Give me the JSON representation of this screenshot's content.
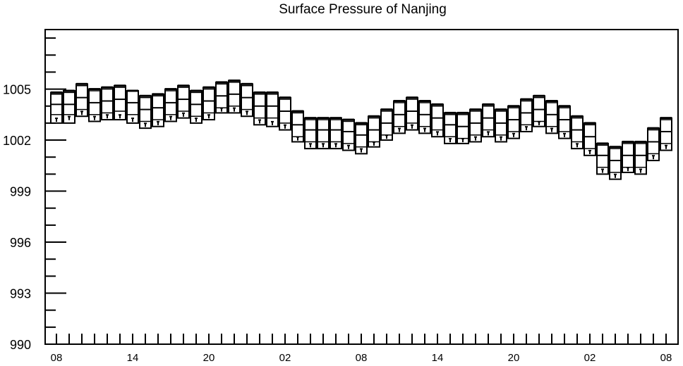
{
  "chart_data": {
    "type": "box",
    "title": "Surface Pressure of Nanjing",
    "xlabel": "",
    "ylabel": "",
    "ylim": [
      990,
      1008.5
    ],
    "xlim": [
      0,
      48
    ],
    "grid": false,
    "legend": "none",
    "y_ticks": [
      990,
      993,
      996,
      999,
      1002,
      1005
    ],
    "x_tick_labels": [
      {
        "x": 0,
        "label": "08"
      },
      {
        "x": 6,
        "label": "14"
      },
      {
        "x": 12,
        "label": "20"
      },
      {
        "x": 18,
        "label": "02"
      },
      {
        "x": 24,
        "label": "08"
      },
      {
        "x": 30,
        "label": "14"
      },
      {
        "x": 36,
        "label": "20"
      },
      {
        "x": 42,
        "label": "02"
      },
      {
        "x": 48,
        "label": "08"
      }
    ],
    "boxes": [
      {
        "x": 0,
        "max": 1004.8,
        "q3": 1004.7,
        "median": 1004.1,
        "q1": 1003.5,
        "min": 1003.0,
        "whisker_low": 1003.2
      },
      {
        "x": 1,
        "max": 1004.9,
        "q3": 1004.8,
        "median": 1004.1,
        "q1": 1003.5,
        "min": 1003.0,
        "whisker_low": 1003.3
      },
      {
        "x": 2,
        "max": 1005.3,
        "q3": 1005.2,
        "median": 1004.5,
        "q1": 1003.8,
        "min": 1003.4,
        "whisker_low": 1003.6
      },
      {
        "x": 3,
        "max": 1005.0,
        "q3": 1004.9,
        "median": 1004.2,
        "q1": 1003.5,
        "min": 1003.1,
        "whisker_low": 1003.3
      },
      {
        "x": 4,
        "max": 1005.1,
        "q3": 1005.0,
        "median": 1004.3,
        "q1": 1003.6,
        "min": 1003.2,
        "whisker_low": 1003.4
      },
      {
        "x": 5,
        "max": 1005.2,
        "q3": 1005.1,
        "median": 1004.4,
        "q1": 1003.7,
        "min": 1003.2,
        "whisker_low": 1003.4
      },
      {
        "x": 6,
        "max": 1004.9,
        "q3": 1004.9,
        "median": 1004.2,
        "q1": 1003.5,
        "min": 1003.0,
        "whisker_low": 1003.2
      },
      {
        "x": 7,
        "max": 1004.6,
        "q3": 1004.5,
        "median": 1003.8,
        "q1": 1003.1,
        "min": 1002.7,
        "whisker_low": 1002.9
      },
      {
        "x": 8,
        "max": 1004.7,
        "q3": 1004.6,
        "median": 1003.9,
        "q1": 1003.2,
        "min": 1002.8,
        "whisker_low": 1003.0
      },
      {
        "x": 9,
        "max": 1005.0,
        "q3": 1004.9,
        "median": 1004.2,
        "q1": 1003.5,
        "min": 1003.1,
        "whisker_low": 1003.3
      },
      {
        "x": 10,
        "max": 1005.2,
        "q3": 1005.1,
        "median": 1004.4,
        "q1": 1003.7,
        "min": 1003.3,
        "whisker_low": 1003.5
      },
      {
        "x": 11,
        "max": 1004.9,
        "q3": 1004.8,
        "median": 1004.1,
        "q1": 1003.4,
        "min": 1003.0,
        "whisker_low": 1003.2
      },
      {
        "x": 12,
        "max": 1005.1,
        "q3": 1005.0,
        "median": 1004.3,
        "q1": 1003.6,
        "min": 1003.2,
        "whisker_low": 1003.4
      },
      {
        "x": 13,
        "max": 1005.4,
        "q3": 1005.3,
        "median": 1004.6,
        "q1": 1003.9,
        "min": 1003.6,
        "whisker_low": 1003.8
      },
      {
        "x": 14,
        "max": 1005.5,
        "q3": 1005.4,
        "median": 1004.7,
        "q1": 1004.0,
        "min": 1003.6,
        "whisker_low": 1003.8
      },
      {
        "x": 15,
        "max": 1005.3,
        "q3": 1005.2,
        "median": 1004.5,
        "q1": 1003.8,
        "min": 1003.4,
        "whisker_low": 1003.6
      },
      {
        "x": 16,
        "max": 1004.8,
        "q3": 1004.7,
        "median": 1004.0,
        "q1": 1003.3,
        "min": 1002.9,
        "whisker_low": 1003.1
      },
      {
        "x": 17,
        "max": 1004.8,
        "q3": 1004.7,
        "median": 1004.0,
        "q1": 1003.3,
        "min": 1002.8,
        "whisker_low": 1003.0
      },
      {
        "x": 18,
        "max": 1004.5,
        "q3": 1004.4,
        "median": 1003.7,
        "q1": 1003.0,
        "min": 1002.6,
        "whisker_low": 1002.8
      },
      {
        "x": 19,
        "max": 1003.7,
        "q3": 1003.6,
        "median": 1002.9,
        "q1": 1002.2,
        "min": 1001.9,
        "whisker_low": 1002.1
      },
      {
        "x": 20,
        "max": 1003.3,
        "q3": 1003.2,
        "median": 1002.6,
        "q1": 1001.9,
        "min": 1001.5,
        "whisker_low": 1001.7
      },
      {
        "x": 21,
        "max": 1003.3,
        "q3": 1003.2,
        "median": 1002.6,
        "q1": 1001.9,
        "min": 1001.5,
        "whisker_low": 1001.7
      },
      {
        "x": 22,
        "max": 1003.3,
        "q3": 1003.2,
        "median": 1002.6,
        "q1": 1001.9,
        "min": 1001.5,
        "whisker_low": 1001.7
      },
      {
        "x": 23,
        "max": 1003.2,
        "q3": 1003.1,
        "median": 1002.5,
        "q1": 1001.8,
        "min": 1001.4,
        "whisker_low": 1001.6
      },
      {
        "x": 24,
        "max": 1003.0,
        "q3": 1002.9,
        "median": 1002.3,
        "q1": 1001.6,
        "min": 1001.2,
        "whisker_low": 1001.4
      },
      {
        "x": 25,
        "max": 1003.4,
        "q3": 1003.3,
        "median": 1002.6,
        "q1": 1001.9,
        "min": 1001.6,
        "whisker_low": 1001.8
      },
      {
        "x": 26,
        "max": 1003.8,
        "q3": 1003.7,
        "median": 1003.0,
        "q1": 1002.3,
        "min": 1002.0,
        "whisker_low": 1002.2
      },
      {
        "x": 27,
        "max": 1004.3,
        "q3": 1004.2,
        "median": 1003.5,
        "q1": 1002.8,
        "min": 1002.4,
        "whisker_low": 1002.6
      },
      {
        "x": 28,
        "max": 1004.5,
        "q3": 1004.4,
        "median": 1003.7,
        "q1": 1003.0,
        "min": 1002.6,
        "whisker_low": 1002.8
      },
      {
        "x": 29,
        "max": 1004.3,
        "q3": 1004.2,
        "median": 1003.5,
        "q1": 1002.8,
        "min": 1002.4,
        "whisker_low": 1002.6
      },
      {
        "x": 30,
        "max": 1004.1,
        "q3": 1004.0,
        "median": 1003.3,
        "q1": 1002.6,
        "min": 1002.2,
        "whisker_low": 1002.4
      },
      {
        "x": 31,
        "max": 1003.6,
        "q3": 1003.5,
        "median": 1002.9,
        "q1": 1002.2,
        "min": 1001.8,
        "whisker_low": 1002.0
      },
      {
        "x": 32,
        "max": 1003.6,
        "q3": 1003.5,
        "median": 1002.8,
        "q1": 1002.1,
        "min": 1001.8,
        "whisker_low": 1002.0
      },
      {
        "x": 33,
        "max": 1003.8,
        "q3": 1003.7,
        "median": 1003.0,
        "q1": 1002.3,
        "min": 1001.9,
        "whisker_low": 1002.1
      },
      {
        "x": 34,
        "max": 1004.1,
        "q3": 1004.0,
        "median": 1003.3,
        "q1": 1002.6,
        "min": 1002.2,
        "whisker_low": 1002.4
      },
      {
        "x": 35,
        "max": 1003.8,
        "q3": 1003.7,
        "median": 1003.0,
        "q1": 1002.3,
        "min": 1001.9,
        "whisker_low": 1002.1
      },
      {
        "x": 36,
        "max": 1004.0,
        "q3": 1003.9,
        "median": 1003.2,
        "q1": 1002.5,
        "min": 1002.1,
        "whisker_low": 1002.3
      },
      {
        "x": 37,
        "max": 1004.4,
        "q3": 1004.3,
        "median": 1003.6,
        "q1": 1002.9,
        "min": 1002.5,
        "whisker_low": 1002.7
      },
      {
        "x": 38,
        "max": 1004.6,
        "q3": 1004.5,
        "median": 1003.8,
        "q1": 1003.1,
        "min": 1002.8,
        "whisker_low": 1003.0
      },
      {
        "x": 39,
        "max": 1004.3,
        "q3": 1004.2,
        "median": 1003.5,
        "q1": 1002.8,
        "min": 1002.4,
        "whisker_low": 1002.6
      },
      {
        "x": 40,
        "max": 1004.0,
        "q3": 1003.9,
        "median": 1003.2,
        "q1": 1002.5,
        "min": 1002.1,
        "whisker_low": 1002.3
      },
      {
        "x": 41,
        "max": 1003.4,
        "q3": 1003.3,
        "median": 1002.6,
        "q1": 1001.9,
        "min": 1001.5,
        "whisker_low": 1001.7
      },
      {
        "x": 42,
        "max": 1003.0,
        "q3": 1002.9,
        "median": 1002.2,
        "q1": 1001.5,
        "min": 1001.1,
        "whisker_low": 1001.3
      },
      {
        "x": 43,
        "max": 1001.8,
        "q3": 1001.7,
        "median": 1001.1,
        "q1": 1000.4,
        "min": 1000.0,
        "whisker_low": 1000.2
      },
      {
        "x": 44,
        "max": 1001.6,
        "q3": 1001.5,
        "median": 1000.8,
        "q1": 1000.1,
        "min": 999.7,
        "whisker_low": 999.9
      },
      {
        "x": 45,
        "max": 1001.9,
        "q3": 1001.8,
        "median": 1001.1,
        "q1": 1000.4,
        "min": 1000.1,
        "whisker_low": 1000.3
      },
      {
        "x": 46,
        "max": 1001.9,
        "q3": 1001.8,
        "median": 1001.1,
        "q1": 1000.4,
        "min": 1000.0,
        "whisker_low": 1000.2
      },
      {
        "x": 47,
        "max": 1002.7,
        "q3": 1002.6,
        "median": 1001.9,
        "q1": 1001.2,
        "min": 1000.8,
        "whisker_low": 1001.0
      },
      {
        "x": 48,
        "max": 1003.3,
        "q3": 1003.2,
        "median": 1002.5,
        "q1": 1001.8,
        "min": 1001.4,
        "whisker_low": 1001.6
      }
    ]
  }
}
